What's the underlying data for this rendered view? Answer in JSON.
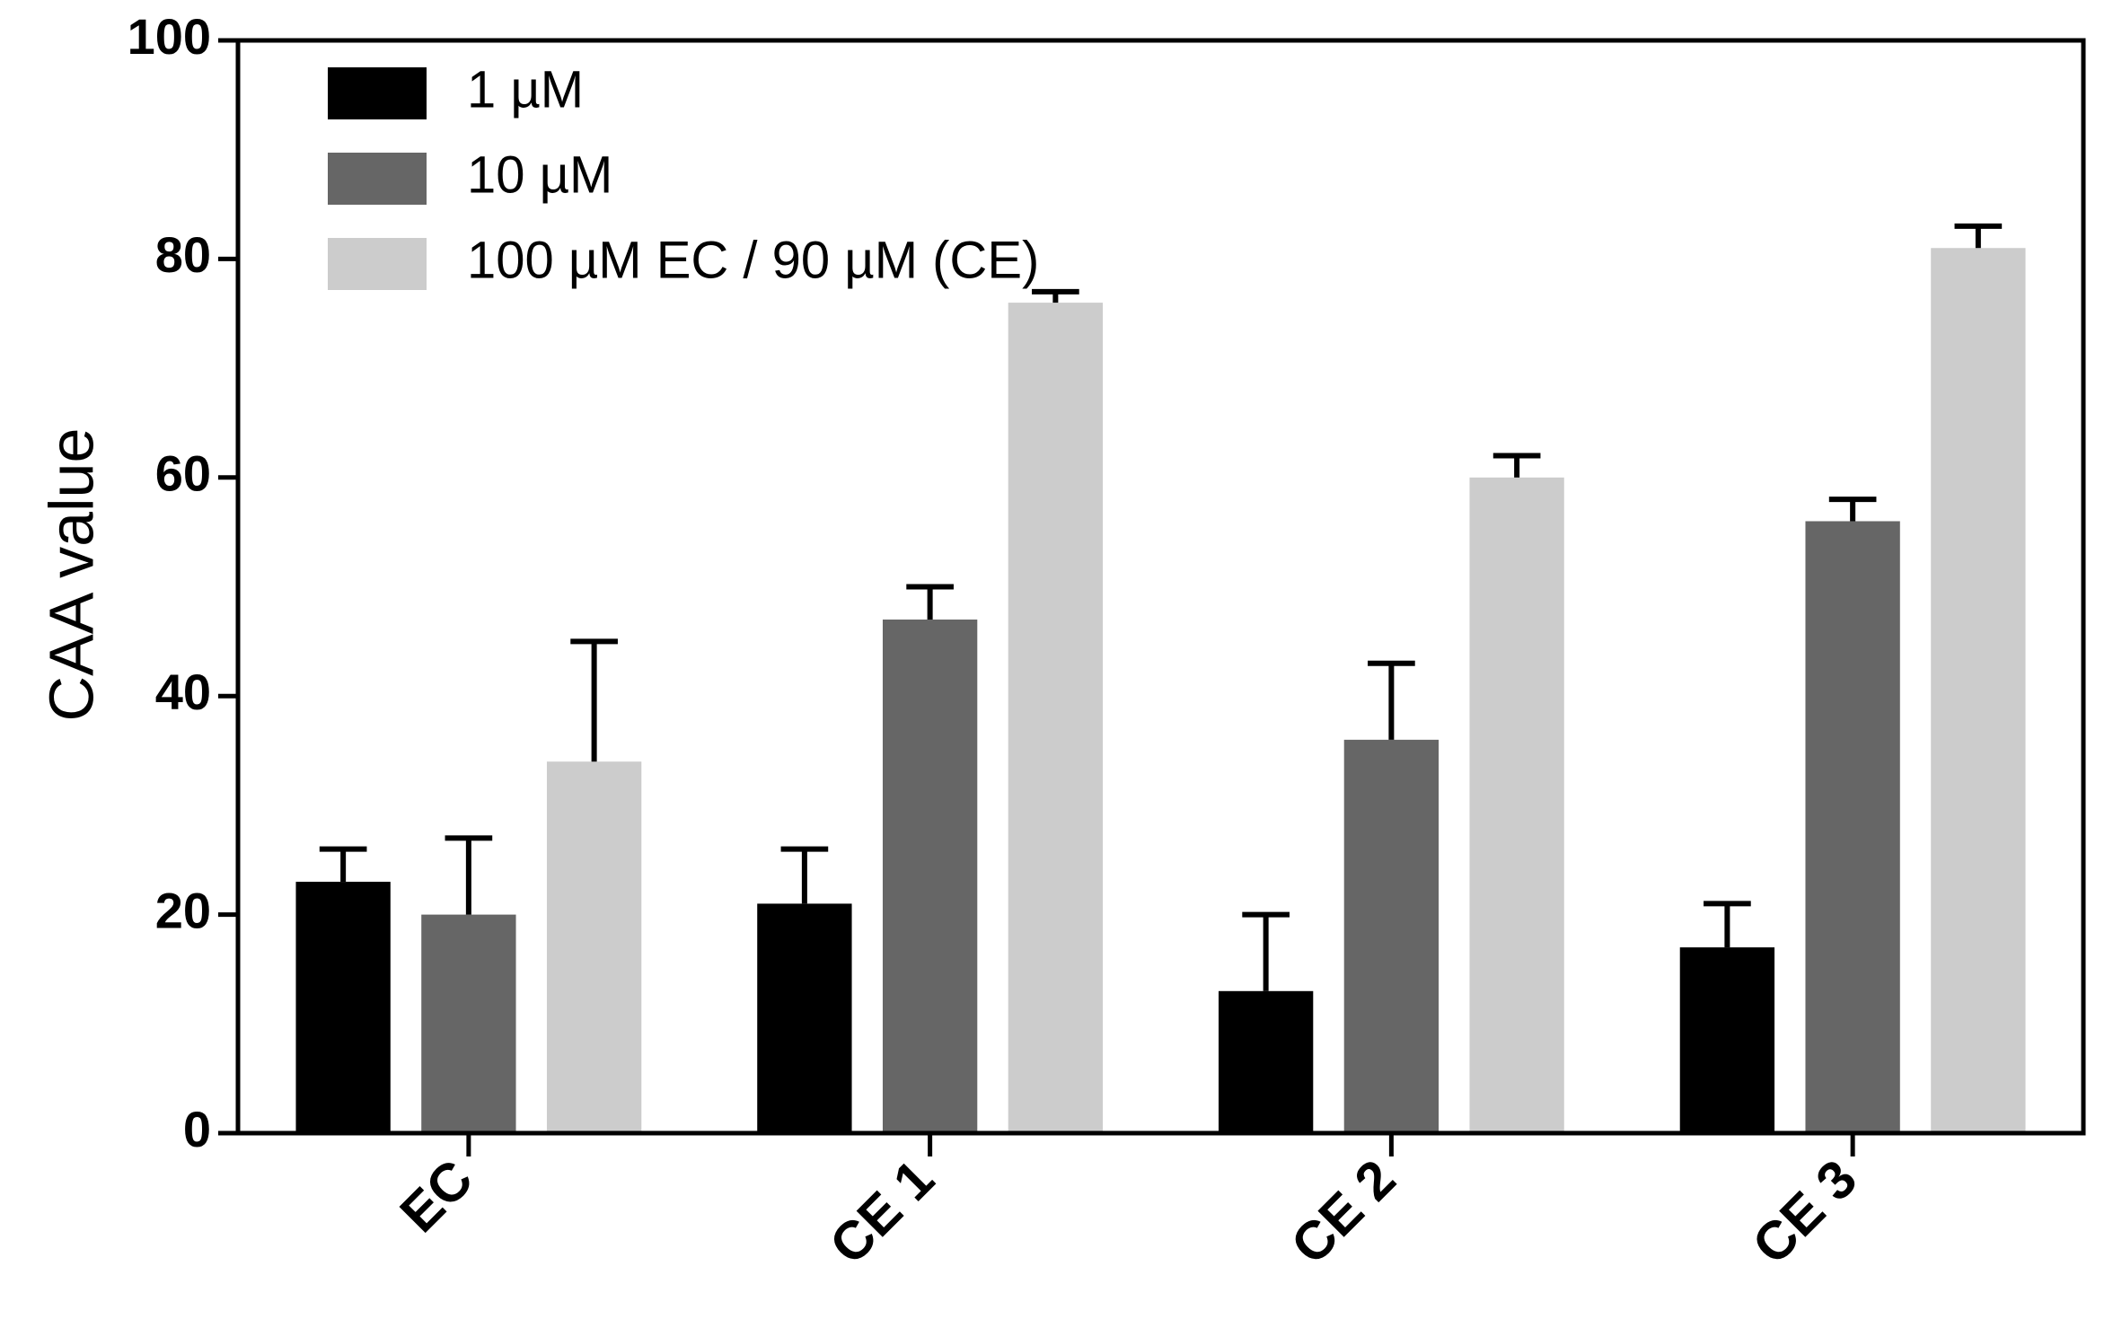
{
  "chart_data": {
    "type": "bar",
    "title": "",
    "xlabel": "",
    "ylabel": "CAA value",
    "ylim": [
      0,
      100
    ],
    "yticks": [
      "0",
      "20",
      "40",
      "60",
      "80",
      "100"
    ],
    "grid": false,
    "legend_position": "top-left",
    "categories": [
      "EC",
      "CE 1",
      "CE 2",
      "CE 3"
    ],
    "series": [
      {
        "name": "1 µM",
        "color": "#000000",
        "values": [
          23,
          21,
          13,
          17
        ],
        "errors": [
          3,
          5,
          7,
          4
        ]
      },
      {
        "name": "10 µM",
        "color": "#666666",
        "values": [
          20,
          47,
          36,
          56
        ],
        "errors": [
          7,
          3,
          7,
          2
        ]
      },
      {
        "name": "100 µM EC / 90 µM (CE)",
        "color": "#cccccc",
        "values": [
          34,
          76,
          60,
          81
        ],
        "errors": [
          11,
          1,
          2,
          2
        ]
      }
    ]
  }
}
